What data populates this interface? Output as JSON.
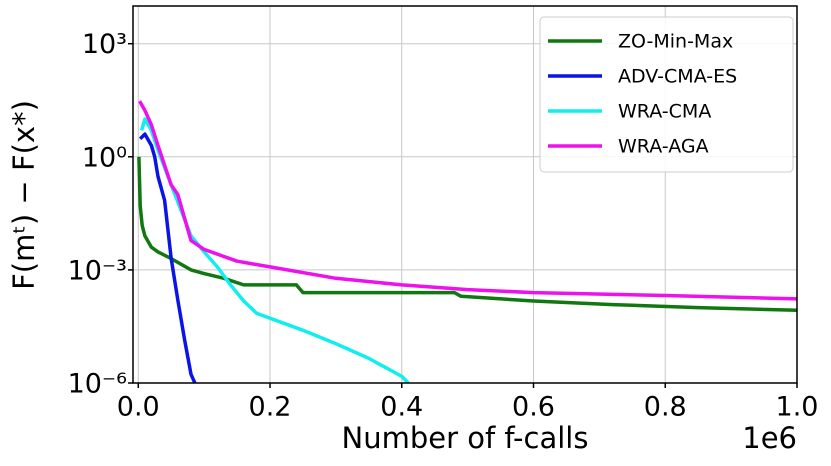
{
  "chart_data": {
    "type": "line",
    "x_label": "Number of f-calls",
    "x_offset_label": "1e6",
    "y_label": "F(mᵗ) − F(x*)",
    "xlim": [
      -0.008,
      1.0
    ],
    "ylim": [
      1e-06,
      10000
    ],
    "y_scale": "log",
    "grid": true,
    "legend": "upper right",
    "xticks": [
      {
        "value": 0,
        "label": "0.0"
      },
      0.2,
      0.4,
      0.6,
      0.8,
      {
        "value": 1,
        "label": "1.0"
      }
    ],
    "yticks": [
      {
        "value": 1e-06,
        "label": "10⁻⁶"
      },
      {
        "value": 0.001,
        "label": "10⁻³"
      },
      {
        "value": 1,
        "label": "10⁰"
      },
      {
        "value": 1000,
        "label": "10³"
      }
    ],
    "series": [
      {
        "name": "ZO-Min-Max",
        "color": "#117711",
        "x": [
          0.001,
          0.003,
          0.006,
          0.01,
          0.02,
          0.03,
          0.05,
          0.08,
          0.1,
          0.13,
          0.16,
          0.24,
          0.25,
          0.35,
          0.48,
          0.49,
          0.6,
          0.72,
          0.85,
          1.0
        ],
        "values": [
          1.0,
          0.05,
          0.015,
          0.008,
          0.004,
          0.003,
          0.002,
          0.001,
          0.0008,
          0.0006,
          0.0004,
          0.0004,
          0.00025,
          0.00025,
          0.00025,
          0.0002,
          0.00015,
          0.00012,
          0.0001,
          8.5e-05
        ]
      },
      {
        "name": "ADV-CMA-ES",
        "color": "#0a14e6",
        "x": [
          0.003,
          0.01,
          0.02,
          0.025,
          0.03,
          0.04,
          0.05,
          0.06,
          0.07,
          0.08,
          0.086
        ],
        "values": [
          3,
          4,
          2,
          1,
          0.3,
          0.07,
          0.002,
          0.00016,
          1.5e-05,
          1.7e-06,
          1e-06
        ]
      },
      {
        "name": "WRA-CMA",
        "color": "#11eeee",
        "x": [
          0.005,
          0.01,
          0.02,
          0.03,
          0.05,
          0.08,
          0.1,
          0.12,
          0.14,
          0.16,
          0.18,
          0.25,
          0.3,
          0.35,
          0.4,
          0.41
        ],
        "values": [
          5,
          10,
          5,
          1.5,
          0.18,
          0.008,
          0.003,
          0.0012,
          0.0004,
          0.00015,
          7e-05,
          2.5e-05,
          1.1e-05,
          4.5e-06,
          1.5e-06,
          1e-06
        ]
      },
      {
        "name": "WRA-AGA",
        "color": "#ee11ee",
        "x": [
          0.002,
          0.01,
          0.02,
          0.03,
          0.05,
          0.06,
          0.08,
          0.1,
          0.15,
          0.2,
          0.3,
          0.4,
          0.5,
          0.6,
          0.8,
          1.0
        ],
        "values": [
          30,
          17,
          7,
          2,
          0.18,
          0.1,
          0.006,
          0.0035,
          0.0017,
          0.0012,
          0.0006,
          0.0004,
          0.0003,
          0.00025,
          0.00021,
          0.00017
        ]
      }
    ]
  }
}
